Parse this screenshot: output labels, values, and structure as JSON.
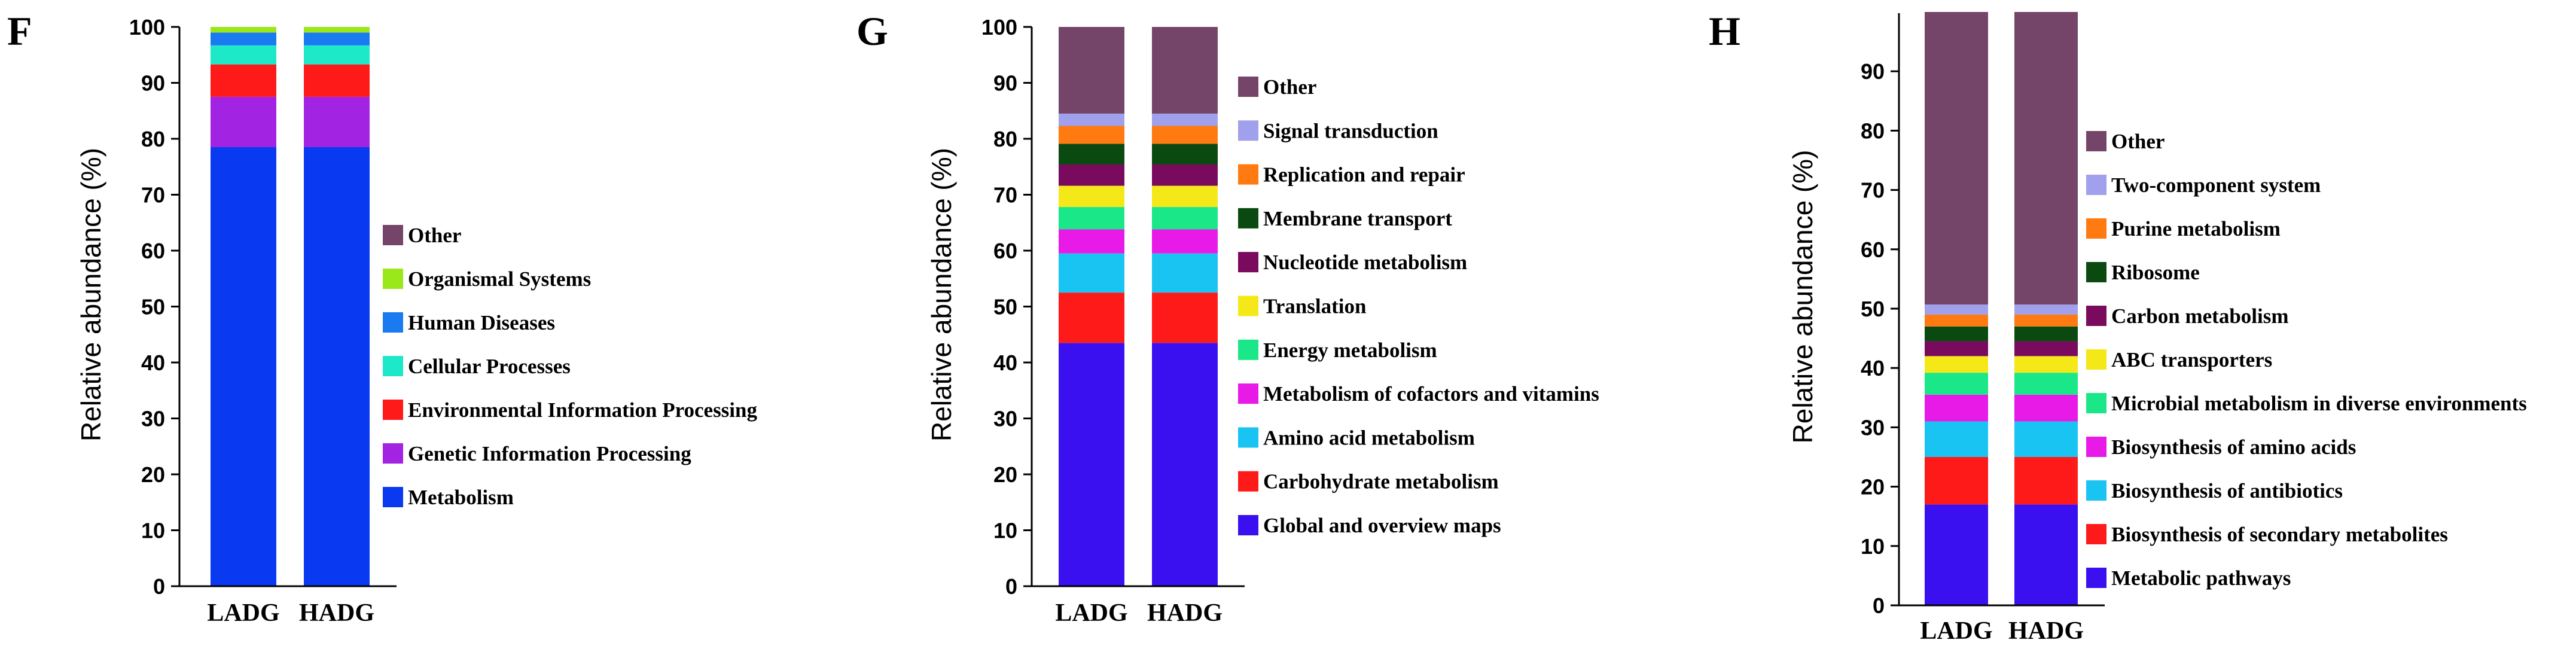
{
  "chart_data": [
    {
      "panel": "F",
      "type": "bar",
      "stacked": true,
      "categories": [
        "LADG",
        "HADG"
      ],
      "ylabel": "Relative abundance   (%)",
      "ylim": [
        0,
        100
      ],
      "yticks": [
        0,
        10,
        20,
        30,
        40,
        50,
        60,
        70,
        80,
        90,
        100
      ],
      "series": [
        {
          "name": "Metabolism",
          "color": "#0a39f2",
          "values": [
            78.5,
            78.5
          ]
        },
        {
          "name": "Genetic Information Processing",
          "color": "#a323e3",
          "values": [
            9.0,
            9.0
          ]
        },
        {
          "name": "Environmental Information Processing",
          "color": "#ff1a1a",
          "values": [
            5.8,
            5.8
          ]
        },
        {
          "name": "Cellular Processes",
          "color": "#1de8c8",
          "values": [
            3.4,
            3.4
          ]
        },
        {
          "name": "Human Diseases",
          "color": "#1a7af0",
          "values": [
            2.3,
            2.3
          ]
        },
        {
          "name": "Organismal Systems",
          "color": "#9be81a",
          "values": [
            1.0,
            1.0
          ]
        },
        {
          "name": "Other",
          "color": "#754569",
          "values": [
            0.0,
            0.0
          ]
        }
      ]
    },
    {
      "panel": "G",
      "type": "bar",
      "stacked": true,
      "categories": [
        "LADG",
        "HADG"
      ],
      "ylabel": "Relative abundance   (%)",
      "ylim": [
        0,
        100
      ],
      "yticks": [
        0,
        10,
        20,
        30,
        40,
        50,
        60,
        70,
        80,
        90,
        100
      ],
      "series": [
        {
          "name": "Global and overview maps",
          "color": "#3a10f0",
          "values": [
            43.5,
            43.5
          ]
        },
        {
          "name": "Carbohydrate metabolism",
          "color": "#ff1a1a",
          "values": [
            9.0,
            9.0
          ]
        },
        {
          "name": "Amino acid metabolism",
          "color": "#1ac4f2",
          "values": [
            7.0,
            7.0
          ]
        },
        {
          "name": "Metabolism of cofactors and vitamins",
          "color": "#e81ae8",
          "values": [
            4.3,
            4.3
          ]
        },
        {
          "name": "Energy metabolism",
          "color": "#1ae888",
          "values": [
            4.0,
            4.0
          ]
        },
        {
          "name": "Translation",
          "color": "#f5e818",
          "values": [
            3.8,
            3.8
          ]
        },
        {
          "name": "Nucleotide metabolism",
          "color": "#7a0a5e",
          "values": [
            3.8,
            3.8
          ]
        },
        {
          "name": "Membrane transport",
          "color": "#0a4a10",
          "values": [
            3.7,
            3.7
          ]
        },
        {
          "name": "Replication and repair",
          "color": "#ff7a10",
          "values": [
            3.2,
            3.2
          ]
        },
        {
          "name": "Signal transduction",
          "color": "#a0a0ec",
          "values": [
            2.2,
            2.2
          ]
        },
        {
          "name": "Other",
          "color": "#754569",
          "values": [
            15.5,
            15.5
          ]
        }
      ]
    },
    {
      "panel": "H",
      "type": "bar",
      "stacked": true,
      "categories": [
        "LADG",
        "HADG"
      ],
      "ylabel": "Relative abundance   (%)",
      "ylim": [
        0,
        100
      ],
      "yticks": [
        0,
        10,
        20,
        30,
        40,
        50,
        60,
        70,
        80,
        90
      ],
      "series": [
        {
          "name": "Metabolic pathways",
          "color": "#3a10f0",
          "values": [
            17.0,
            17.0
          ]
        },
        {
          "name": "Biosynthesis of secondary metabolites",
          "color": "#ff1a1a",
          "values": [
            8.0,
            8.0
          ]
        },
        {
          "name": "Biosynthesis of antibiotics",
          "color": "#1ac4f2",
          "values": [
            6.0,
            6.0
          ]
        },
        {
          "name": "Biosynthesis of amino acids",
          "color": "#e81ae8",
          "values": [
            4.5,
            4.5
          ]
        },
        {
          "name": "Microbial metabolism in diverse environments",
          "color": "#1ae888",
          "values": [
            3.7,
            3.7
          ]
        },
        {
          "name": "ABC transporters",
          "color": "#f5e818",
          "values": [
            2.8,
            2.8
          ]
        },
        {
          "name": "Carbon metabolism",
          "color": "#7a0a5e",
          "values": [
            2.5,
            2.5
          ]
        },
        {
          "name": "Ribosome",
          "color": "#0a4a10",
          "values": [
            2.5,
            2.5
          ]
        },
        {
          "name": "Purine metabolism",
          "color": "#ff7a10",
          "values": [
            2.0,
            2.0
          ]
        },
        {
          "name": "Two-component system",
          "color": "#a0a0ec",
          "values": [
            1.7,
            1.7
          ]
        },
        {
          "name": "Other",
          "color": "#754569",
          "values": [
            49.3,
            49.3
          ]
        }
      ]
    }
  ]
}
